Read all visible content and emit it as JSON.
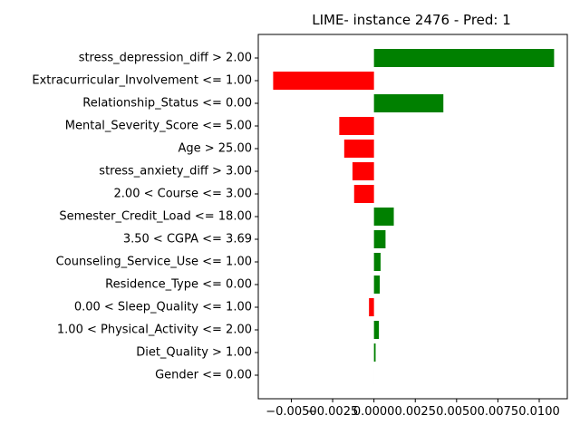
{
  "chart_data": {
    "type": "bar",
    "orientation": "horizontal",
    "title": "LIME- instance 2476 - Pred: 1",
    "xlabel": "",
    "ylabel": "",
    "grid": false,
    "legend": "none",
    "xlim": [
      -0.007,
      0.0117
    ],
    "xticks": [
      -0.005,
      -0.0025,
      0.0,
      0.0025,
      0.005,
      0.0075,
      0.01
    ],
    "xtick_labels": [
      "−0.0050",
      "−0.0025",
      "0.0000",
      "0.0025",
      "0.0050",
      "0.0075",
      "0.0100"
    ],
    "positive_color": "#008000",
    "negative_color": "#ff0000",
    "categories": [
      "stress_depression_diff > 2.00",
      "Extracurricular_Involvement <= 1.00",
      "Relationship_Status <= 0.00",
      "Mental_Severity_Score <= 5.00",
      "Age > 25.00",
      "stress_anxiety_diff > 3.00",
      "2.00 < Course <= 3.00",
      "Semester_Credit_Load <= 18.00",
      "3.50 < CGPA <= 3.69",
      "Counseling_Service_Use <= 1.00",
      "Residence_Type <= 0.00",
      "0.00 < Sleep_Quality <= 1.00",
      "1.00 < Physical_Activity <= 2.00",
      "Diet_Quality > 1.00",
      "Gender <= 0.00"
    ],
    "values": [
      0.0109,
      -0.0061,
      0.0042,
      -0.0021,
      -0.0018,
      -0.0013,
      -0.0012,
      0.0012,
      0.0007,
      0.0004,
      0.00035,
      -0.0003,
      0.0003,
      0.0001,
      0.0
    ]
  }
}
